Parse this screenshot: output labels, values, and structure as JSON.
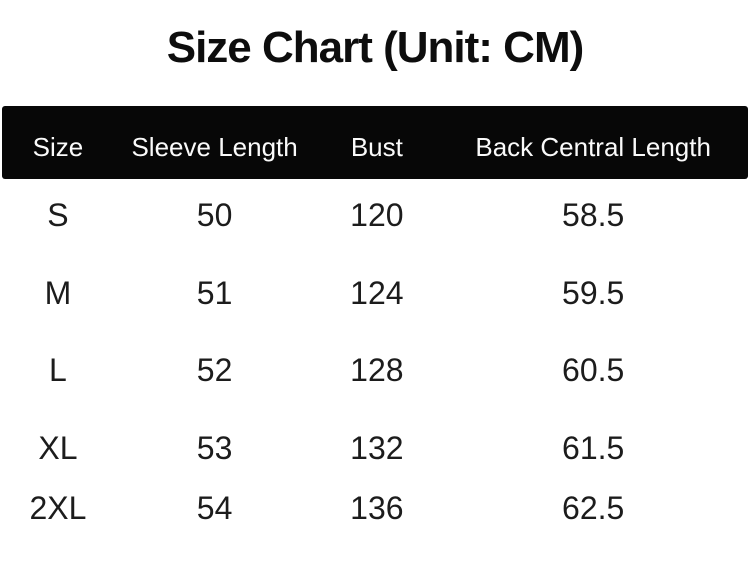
{
  "title": "Size Chart (Unit: CM)",
  "unit": "CM",
  "colors": {
    "background": "#ffffff",
    "header_bg": "#070707",
    "header_text": "#fafafa",
    "body_text": "#1c1c1c"
  },
  "table": {
    "columns": [
      "Size",
      "Sleeve Length",
      "Bust",
      "Back Central Length"
    ],
    "rows": [
      {
        "size": "S",
        "sleeve_length": "50",
        "bust": "120",
        "back_central_length": "58.5"
      },
      {
        "size": "M",
        "sleeve_length": "51",
        "bust": "124",
        "back_central_length": "59.5"
      },
      {
        "size": "L",
        "sleeve_length": "52",
        "bust": "128",
        "back_central_length": "60.5"
      },
      {
        "size": "XL",
        "sleeve_length": "53",
        "bust": "132",
        "back_central_length": "61.5"
      },
      {
        "size": "2XL",
        "sleeve_length": "54",
        "bust": "136",
        "back_central_length": "62.5"
      }
    ]
  },
  "chart_data": {
    "type": "table",
    "title": "Size Chart (Unit: CM)",
    "unit": "CM",
    "columns": [
      "Size",
      "Sleeve Length",
      "Bust",
      "Back Central Length"
    ],
    "rows": [
      [
        "S",
        50,
        120,
        58.5
      ],
      [
        "M",
        51,
        124,
        59.5
      ],
      [
        "L",
        52,
        128,
        60.5
      ],
      [
        "XL",
        53,
        132,
        61.5
      ],
      [
        "2XL",
        54,
        136,
        62.5
      ]
    ],
    "layout": {
      "header_style": "white-on-black bar",
      "grid": false,
      "alignment": "center"
    }
  }
}
